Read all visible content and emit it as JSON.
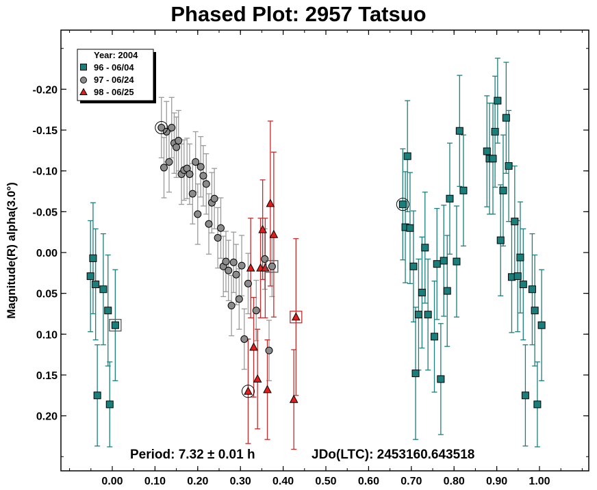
{
  "chart_data": {
    "type": "scatter",
    "title": "Phased Plot: 2957 Tatsuo",
    "xlabel": "",
    "ylabel": "Magnitude(R) alpha(3.0°)",
    "xlim": [
      -0.12,
      1.12
    ],
    "ylim": [
      -0.268,
      0.268
    ],
    "y_inverted": true,
    "grid": false,
    "x_ticks": [
      0.0,
      0.1,
      0.2,
      0.3,
      0.4,
      0.5,
      0.6,
      0.7,
      0.8,
      0.9,
      1.0
    ],
    "x_tick_labels": [
      "0.00",
      "0.10",
      "0.20",
      "0.30",
      "0.40",
      "0.50",
      "0.60",
      "0.70",
      "0.80",
      "0.90",
      "1.00"
    ],
    "y_ticks": [
      -0.2,
      -0.15,
      -0.1,
      -0.05,
      0.0,
      0.05,
      0.1,
      0.15,
      0.2
    ],
    "y_tick_labels": [
      "-0.20",
      "-0.15",
      "-0.10",
      "-0.05",
      "0.00",
      "0.05",
      "0.10",
      "0.15",
      "0.20"
    ],
    "legend": {
      "title": "Year: 2004",
      "placement": "top-left",
      "entries": [
        "96 - 06/04",
        "97 - 06/24",
        "98 - 06/25"
      ]
    },
    "annotations": {
      "period": "Period: 7.32 ± 0.01 h",
      "jdo": "JDo(LTC): 2453160.643518"
    },
    "series": [
      {
        "name": "96 - 06/04",
        "marker": "square",
        "color": "#1a7f7a",
        "err_color": "#1a7f7a",
        "points": [
          [
            -0.051,
            0.029,
            0.068
          ],
          [
            -0.045,
            0.007,
            0.068
          ],
          [
            -0.039,
            0.039,
            0.068
          ],
          [
            -0.035,
            0.175,
            0.062
          ],
          [
            -0.021,
            0.045,
            0.068
          ],
          [
            -0.01,
            0.071,
            0.068
          ],
          [
            -0.006,
            0.186,
            0.052
          ],
          [
            0.007,
            0.089,
            0.068
          ],
          [
            0.68,
            -0.059,
            0.068
          ],
          [
            0.686,
            -0.031,
            0.068
          ],
          [
            0.691,
            -0.118,
            0.068
          ],
          [
            0.697,
            -0.03,
            0.068
          ],
          [
            0.705,
            0.017,
            0.068
          ],
          [
            0.71,
            0.148,
            0.081
          ],
          [
            0.717,
            0.076,
            0.068
          ],
          [
            0.725,
            0.049,
            0.068
          ],
          [
            0.732,
            -0.006,
            0.068
          ],
          [
            0.739,
            0.076,
            0.068
          ],
          [
            0.754,
            0.103,
            0.068
          ],
          [
            0.76,
            0.014,
            0.068
          ],
          [
            0.769,
            0.155,
            0.068
          ],
          [
            0.776,
            0.01,
            0.068
          ],
          [
            0.784,
            0.047,
            0.068
          ],
          [
            0.79,
            -0.066,
            0.068
          ],
          [
            0.806,
            0.011,
            0.068
          ],
          [
            0.813,
            -0.149,
            0.068
          ],
          [
            0.822,
            -0.076,
            0.068
          ],
          [
            0.877,
            -0.124,
            0.068
          ],
          [
            0.883,
            -0.115,
            0.068
          ],
          [
            0.891,
            -0.115,
            0.068
          ],
          [
            0.896,
            -0.148,
            0.068
          ],
          [
            0.902,
            -0.186,
            0.052
          ],
          [
            0.909,
            -0.015,
            0.068
          ],
          [
            0.915,
            -0.076,
            0.068
          ],
          [
            0.922,
            -0.165,
            0.068
          ],
          [
            0.928,
            -0.106,
            0.068
          ],
          [
            0.935,
            0.03,
            0.068
          ],
          [
            0.942,
            -0.038,
            0.068
          ],
          [
            0.949,
            0.029,
            0.068
          ],
          [
            0.955,
            0.006,
            0.068
          ],
          [
            0.962,
            0.039,
            0.068
          ],
          [
            0.967,
            0.175,
            0.062
          ],
          [
            0.983,
            0.045,
            0.068
          ],
          [
            0.989,
            0.071,
            0.068
          ],
          [
            0.995,
            0.186,
            0.052
          ],
          [
            1.005,
            0.089,
            0.068
          ]
        ]
      },
      {
        "name": "97 - 06/24",
        "marker": "circle",
        "color": "#8c8c8c",
        "err_color": "#9a9a9a",
        "points": [
          [
            0.115,
            -0.153,
            0.037
          ],
          [
            0.121,
            -0.104,
            0.037
          ],
          [
            0.127,
            -0.148,
            0.037
          ],
          [
            0.133,
            -0.111,
            0.037
          ],
          [
            0.139,
            -0.153,
            0.037
          ],
          [
            0.145,
            -0.134,
            0.037
          ],
          [
            0.15,
            -0.129,
            0.037
          ],
          [
            0.155,
            -0.137,
            0.037
          ],
          [
            0.162,
            -0.096,
            0.037
          ],
          [
            0.168,
            -0.101,
            0.037
          ],
          [
            0.175,
            -0.103,
            0.037
          ],
          [
            0.181,
            -0.096,
            0.037
          ],
          [
            0.188,
            -0.072,
            0.037
          ],
          [
            0.195,
            -0.111,
            0.037
          ],
          [
            0.2,
            -0.047,
            0.037
          ],
          [
            0.207,
            -0.105,
            0.037
          ],
          [
            0.213,
            -0.094,
            0.037
          ],
          [
            0.22,
            -0.084,
            0.037
          ],
          [
            0.226,
            -0.035,
            0.037
          ],
          [
            0.233,
            -0.061,
            0.037
          ],
          [
            0.239,
            -0.066,
            0.037
          ],
          [
            0.247,
            -0.018,
            0.037
          ],
          [
            0.254,
            -0.03,
            0.037
          ],
          [
            0.26,
            0.017,
            0.037
          ],
          [
            0.266,
            0.011,
            0.037
          ],
          [
            0.272,
            0.022,
            0.037
          ],
          [
            0.279,
            0.065,
            0.037
          ],
          [
            0.284,
            0.012,
            0.037
          ],
          [
            0.29,
            0.027,
            0.037
          ],
          [
            0.297,
            0.057,
            0.037
          ],
          [
            0.303,
            0.016,
            0.037
          ],
          [
            0.309,
            0.106,
            0.037
          ],
          [
            0.318,
            0.038,
            0.037
          ],
          [
            0.337,
            0.071,
            0.037
          ],
          [
            0.357,
            0.008,
            0.037
          ],
          [
            0.367,
            0.12,
            0.037
          ],
          [
            0.374,
            0.017,
            0.037
          ]
        ]
      },
      {
        "name": "98 - 06/25",
        "marker": "triangle",
        "color": "#e31c1c",
        "err_color": "#c42a2a",
        "points": [
          [
            0.318,
            0.17,
            0.064
          ],
          [
            0.324,
            0.019,
            0.061
          ],
          [
            0.331,
            0.116,
            0.061
          ],
          [
            0.34,
            0.155,
            0.061
          ],
          [
            0.347,
            0.019,
            0.061
          ],
          [
            0.352,
            -0.028,
            0.061
          ],
          [
            0.358,
            0.019,
            0.061
          ],
          [
            0.363,
            0.168,
            0.061
          ],
          [
            0.37,
            -0.06,
            0.101
          ],
          [
            0.378,
            -0.022,
            0.101
          ],
          [
            0.425,
            0.18,
            0.061
          ],
          [
            0.43,
            0.079,
            0.096
          ]
        ]
      }
    ],
    "highlighted_points": [
      {
        "series": "97 - 06/24",
        "x": 0.115,
        "y": -0.153
      },
      {
        "series": "96 - 06/04",
        "x": 0.68,
        "y": -0.059
      },
      {
        "series": "98 - 06/25",
        "x": 0.318,
        "y": 0.17
      }
    ],
    "boxed_points": [
      {
        "series": "96 - 06/04",
        "x": 0.007,
        "y": 0.089
      },
      {
        "series": "97 - 06/24",
        "x": 0.374,
        "y": 0.017
      },
      {
        "series": "98 - 06/25",
        "x": 0.43,
        "y": 0.079
      }
    ]
  }
}
